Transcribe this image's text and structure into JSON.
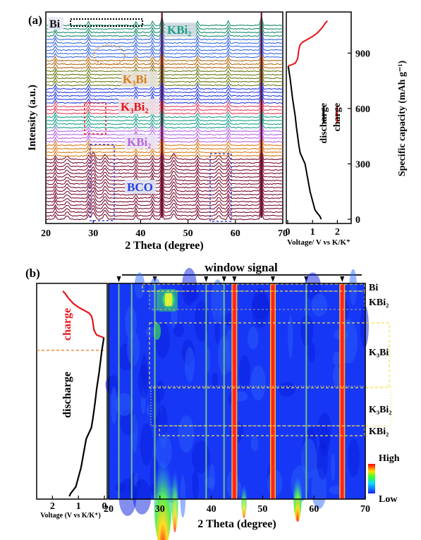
{
  "panel_a": {
    "label": "(a)",
    "ylabel": "Intensity (a.u.)",
    "xlabel": "2 Theta (degree)",
    "phase_labels": [
      "Bi",
      "KBi₂",
      "K₃Bi",
      "K₃Bi₂",
      "KBi₂",
      "BCO"
    ],
    "right_ylabel": "Specific capacity (mAh g⁻¹)",
    "right_xlabel": "Voltage/ V vs K/K⁺",
    "legend_discharge": "discharge",
    "legend_charge": "charge"
  },
  "panel_b": {
    "label": "(b)",
    "title": "window signal",
    "xlabel": "2 Theta (degree)",
    "left_xlabel": "Voltage (V vs K/K⁺)",
    "charge_label": "charge",
    "discharge_label": "discharge",
    "phase_labels": [
      "Bi",
      "KBi₂",
      "K₃Bi",
      "K₃Bi₂",
      "KBi₂"
    ],
    "colorbar_high": "High",
    "colorbar_low": "Low"
  },
  "colors": {
    "charge": "#e8141b",
    "discharge": "#000000",
    "map_bg": "#1740ff",
    "map_hot": "#ff1010",
    "map_warm": "#ffd21e",
    "map_green": "#3ce83c"
  },
  "chart_data": [
    {
      "type": "line",
      "title": "",
      "xlabel": "2 Theta (degree)",
      "ylabel": "Intensity (a.u.)",
      "xlim": [
        20,
        70
      ],
      "xticks": [
        20,
        30,
        40,
        50,
        60,
        70
      ],
      "window_peaks": [
        22,
        29,
        39,
        42.5,
        44.5,
        52,
        58.5,
        65.5
      ],
      "series_colors": [
        "#7a1030",
        "#d97a1a",
        "#b566e0",
        "#1aa08a",
        "#e0405a",
        "#2a3fe0",
        "#6b7a18",
        "#b06a18",
        "#3a6ae0",
        "#1a8a70"
      ]
    },
    {
      "type": "line",
      "title": "",
      "xlabel": "Voltage/ V vs K/K⁺",
      "ylabel": "Specific capacity (mAh g⁻¹)",
      "xlim": [
        0,
        2.5
      ],
      "xticks": [
        0,
        1,
        2
      ],
      "ylim": [
        0,
        1100
      ],
      "yticks": [
        0,
        300,
        600,
        900
      ],
      "series": [
        {
          "name": "discharge",
          "x": [
            1.35,
            1.3,
            1.1,
            0.9,
            0.7,
            0.5,
            0.45,
            0.4,
            0.35,
            0.3,
            0.2,
            0.1,
            0.02
          ],
          "y": [
            0,
            15,
            50,
            150,
            300,
            360,
            400,
            450,
            500,
            560,
            650,
            760,
            830
          ]
        },
        {
          "name": "charge",
          "x": [
            0.02,
            0.3,
            0.4,
            0.45,
            0.5,
            0.6,
            0.8,
            1.0,
            1.2,
            1.4,
            1.5,
            1.6
          ],
          "y": [
            830,
            845,
            870,
            920,
            945,
            960,
            975,
            990,
            1010,
            1040,
            1060,
            1075
          ]
        }
      ]
    },
    {
      "type": "heatmap",
      "title": "window signal",
      "xlabel": "2 Theta (degree)",
      "xlim": [
        20,
        70
      ],
      "xticks": [
        20,
        30,
        40,
        50,
        60,
        70
      ],
      "strong_lines": [
        44.5,
        52,
        65.5
      ],
      "window_lines": [
        22,
        24.5,
        29,
        39,
        42.5,
        44.5,
        52,
        58.5,
        65.5
      ],
      "colorbar": [
        "High",
        "Low"
      ]
    }
  ]
}
